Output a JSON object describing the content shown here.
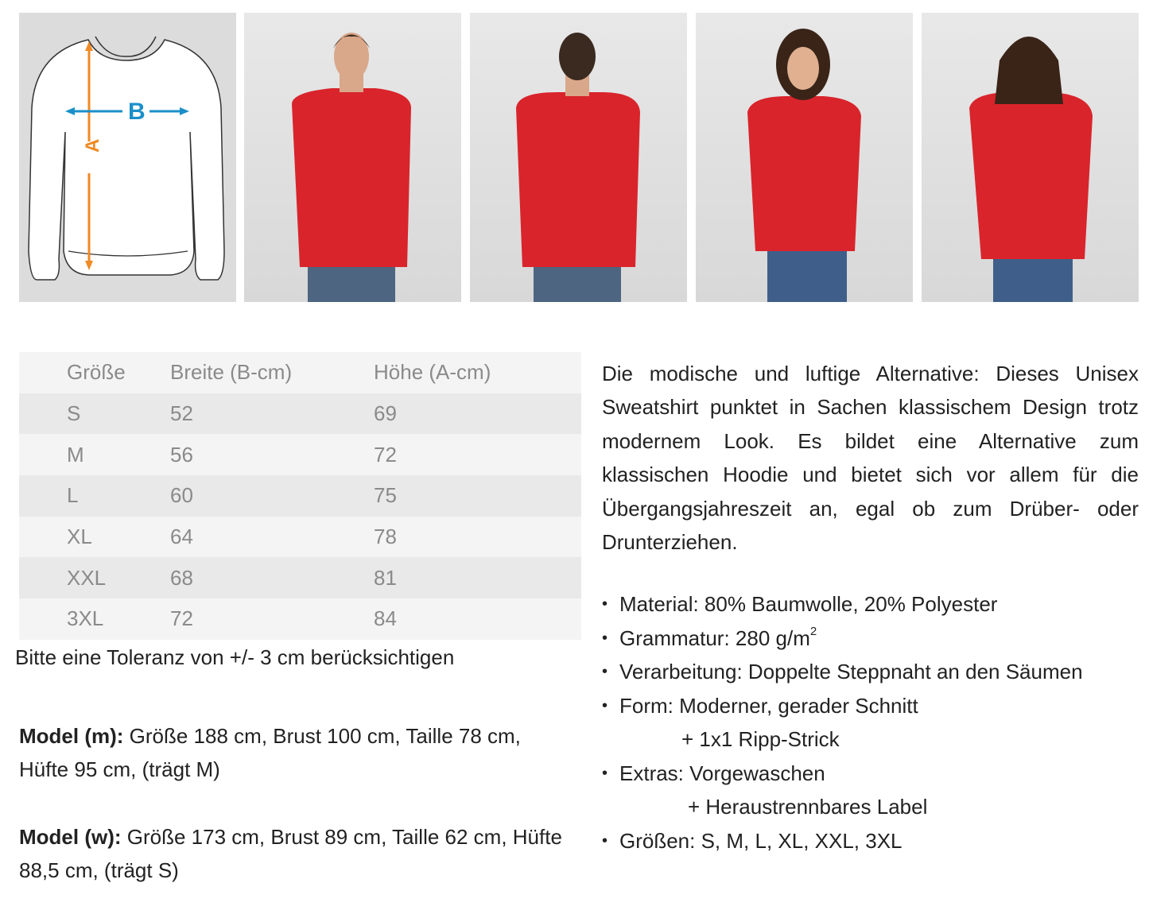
{
  "diagram": {
    "label_a": "A",
    "label_b": "B",
    "color_a": "#f08a24",
    "color_b": "#1a8fc9"
  },
  "photos": [
    {
      "name": "model-m-front",
      "shirt_color": "#d9242b"
    },
    {
      "name": "model-m-back",
      "shirt_color": "#d9242b"
    },
    {
      "name": "model-w-front",
      "shirt_color": "#d9242b"
    },
    {
      "name": "model-w-back",
      "shirt_color": "#d9242b"
    }
  ],
  "size_table": {
    "headers": [
      "Größe",
      "Breite (B-cm)",
      "Höhe (A-cm)"
    ],
    "rows": [
      [
        "S",
        "52",
        "69"
      ],
      [
        "M",
        "56",
        "72"
      ],
      [
        "L",
        "60",
        "75"
      ],
      [
        "XL",
        "64",
        "78"
      ],
      [
        "XXL",
        "68",
        "81"
      ],
      [
        "3XL",
        "72",
        "84"
      ]
    ]
  },
  "tolerance": "Bitte eine Toleranz von +/- 3 cm berücksichtigen",
  "model_m": {
    "label": "Model (m):",
    "text": " Größe 188 cm, Brust 100 cm, Taille 78 cm, Hüfte 95 cm, (trägt M)"
  },
  "model_w": {
    "label": "Model (w):",
    "text": " Größe 173 cm, Brust 89 cm, Taille 62 cm, Hüfte 88,5 cm, (trägt S)"
  },
  "description": "Die modische und luftige Alternative: Dieses Unisex Sweatshirt punktet in Sachen klassischem Design trotz modernem Look. Es bildet eine Alternative zum klassischen Hoodie und bietet sich vor allem für die Übergangsjahreszeit an, egal ob zum Drüber- oder Drunterziehen.",
  "features": {
    "material": "Material: 80% Baumwolle, 20% Polyester",
    "grammatur": "Grammatur: 280 g/m",
    "grammatur_sup": "2",
    "verarbeitung": "Verarbeitung: Doppelte Steppnaht an den Säumen",
    "form": "Form: Moderner, gerader Schnitt",
    "form_extra": "+ 1x1 Ripp-Strick",
    "extras": "Extras: Vorgewaschen",
    "extras_extra": "+ Heraustrennbares Label",
    "groessen": "Größen:  S, M, L, XL, XXL, 3XL"
  }
}
